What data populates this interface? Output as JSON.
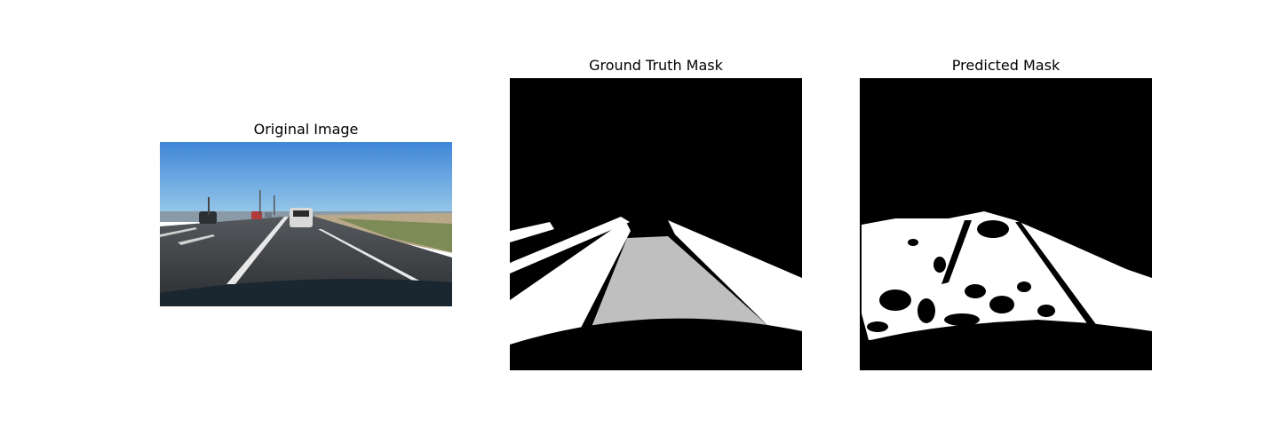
{
  "figure": {
    "panels": [
      {
        "id": "original",
        "title": "Original Image"
      },
      {
        "id": "ground_truth",
        "title": "Ground Truth Mask"
      },
      {
        "id": "predicted",
        "title": "Predicted Mask"
      }
    ],
    "colors": {
      "background": "#ffffff",
      "mask_background": "#000000",
      "mask_foreground": "#ffffff",
      "mask_drivable": "#bfbfbf",
      "sky_top": "#3f86d8",
      "sky_bottom": "#8cc3ea",
      "road": "#3a3d40"
    }
  }
}
